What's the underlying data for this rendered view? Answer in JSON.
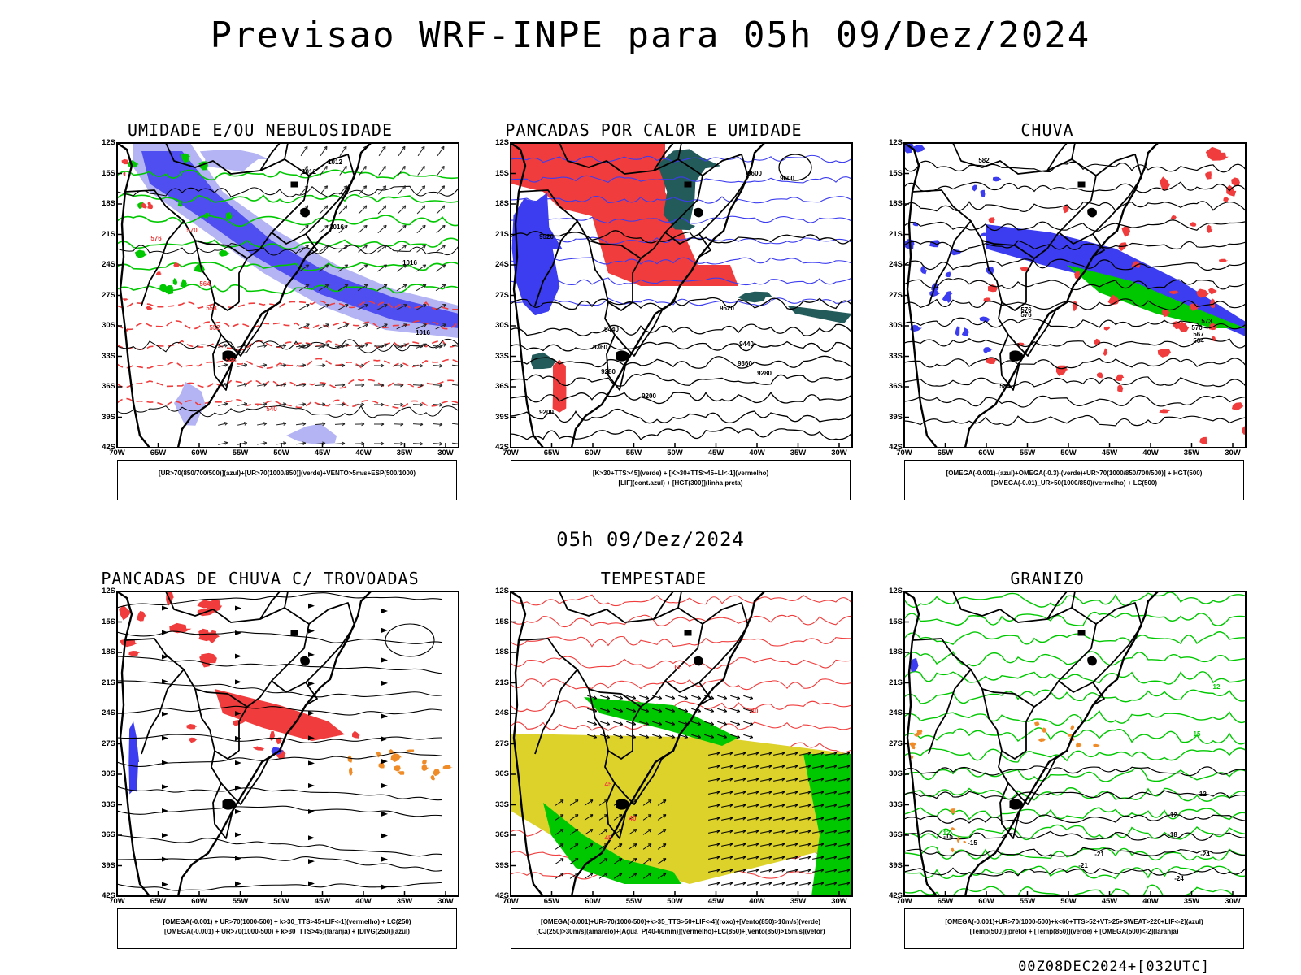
{
  "title": "Previsao WRF-INPE  para 05h 09/Dez/2024",
  "mid_time": "05h 09/Dez/2024",
  "run_stamp": "00Z08DEC2024+[032UTC]",
  "lat_ticks": [
    "12S",
    "15S",
    "18S",
    "21S",
    "24S",
    "27S",
    "30S",
    "33S",
    "36S",
    "39S",
    "42S"
  ],
  "lon_ticks": [
    "70W",
    "65W",
    "60W",
    "55W",
    "50W",
    "45W",
    "40W",
    "35W",
    "30W"
  ],
  "colors": {
    "azul": "#3c3cf0",
    "azul_claro": "#b4b4f4",
    "verde": "#00c800",
    "vermelho": "#f03c3c",
    "verde_escuro": "#235a5a",
    "amarelo": "#dcd22a",
    "laranja": "#f08c28",
    "preto": "#000000"
  },
  "panels": [
    {
      "id": "umidade",
      "title": "UMIDADE E/OU NEBULOSIDADE",
      "legend": [
        "[UR>70(850/700/500)](azul)+[UR>70(1000/850)](verde)+VENTO>5m/s+ESP(500/1000)"
      ],
      "contour_labels": [
        {
          "text": "1012",
          "c": "preto"
        },
        {
          "text": "1012",
          "c": "preto"
        },
        {
          "text": "1016",
          "c": "preto"
        },
        {
          "text": "576",
          "c": "vermelho"
        },
        {
          "text": "570",
          "c": "vermelho"
        },
        {
          "text": "564",
          "c": "vermelho"
        },
        {
          "text": "558",
          "c": "vermelho"
        },
        {
          "text": "552",
          "c": "vermelho"
        },
        {
          "text": "546",
          "c": "vermelho"
        },
        {
          "text": "540",
          "c": "vermelho"
        },
        {
          "text": "1016",
          "c": "preto"
        },
        {
          "text": "1016",
          "c": "preto"
        }
      ]
    },
    {
      "id": "pancadas_calor",
      "title": "PANCADAS POR CALOR E UMIDADE",
      "legend": [
        "[K>30+TTS>45](verde) + [K>30+TTS>45+LI<-1](vermelho)",
        "[LIF](cont.azul) + [HGT(300)](linha preta)"
      ],
      "contour_labels": [
        {
          "text": "9600",
          "c": "preto"
        },
        {
          "text": "9600",
          "c": "preto"
        },
        {
          "text": "9520",
          "c": "preto"
        },
        {
          "text": "9520",
          "c": "preto"
        },
        {
          "text": "9440",
          "c": "preto"
        },
        {
          "text": "9440",
          "c": "preto"
        },
        {
          "text": "9360",
          "c": "preto"
        },
        {
          "text": "9360",
          "c": "preto"
        },
        {
          "text": "9280",
          "c": "preto"
        },
        {
          "text": "9280",
          "c": "preto"
        },
        {
          "text": "9200",
          "c": "preto"
        },
        {
          "text": "9200",
          "c": "preto"
        }
      ]
    },
    {
      "id": "chuva",
      "title": "CHUVA",
      "legend": [
        "[OMEGA(-0.001)-(azul)+OMEGA(-0.3)-(verde)+UR>70(1000/850/700/500)] + HGT(500)",
        "[OMEGA(-0.01)_UR>50(1000/850)(vermelho) + LC(500)"
      ],
      "contour_labels": [
        {
          "text": "582",
          "c": "preto"
        },
        {
          "text": "576",
          "c": "preto"
        },
        {
          "text": "576",
          "c": "preto"
        },
        {
          "text": "573",
          "c": "preto"
        },
        {
          "text": "570",
          "c": "preto"
        },
        {
          "text": "567",
          "c": "preto"
        },
        {
          "text": "564",
          "c": "preto"
        },
        {
          "text": "584",
          "c": "preto"
        }
      ]
    },
    {
      "id": "pancadas_trovoadas",
      "title": "PANCADAS DE CHUVA C/ TROVOADAS",
      "legend": [
        "[OMEGA(-0.001) + UR>70(1000-500) + k>30_TTS>45+LIF<-1](vermelho) + LC(250)",
        "[OMEGA(-0.001) + UR>70(1000-500) + k>30_TTS>45](laranja) + [DIVG(250)](azul)"
      ],
      "contour_labels": []
    },
    {
      "id": "tempestade",
      "title": "TEMPESTADE",
      "legend": [
        "[OMEGA(-0.001)+UR>70(1000-500)+k>35_TTS>50+LIF<-4](roxo)+[Vento(850)>10m/s](verde)",
        "[CJ(250)>30m/s](amarelo)+[Agua_P(40-60mm)](vermelho)+LC(850)+[Vento(850)>15m/s](vetor)"
      ],
      "contour_labels": [
        {
          "text": "60",
          "c": "vermelho"
        },
        {
          "text": "45",
          "c": "vermelho"
        },
        {
          "text": "40",
          "c": "vermelho"
        },
        {
          "text": "45",
          "c": "vermelho"
        },
        {
          "text": "40",
          "c": "vermelho"
        }
      ]
    },
    {
      "id": "granizo",
      "title": "GRANIZO",
      "legend": [
        "[OMEGA(-0.001)+UR>70(1000-500)+k<60+TTS>52+VT>25+SWEAT>220+LIF<-2](azul)",
        "[Temp(500)](preto) + [Temp(850)](verde) + [OMEGA(500)<-2](laranja)"
      ],
      "contour_labels": [
        {
          "text": "12",
          "c": "verde"
        },
        {
          "text": "15",
          "c": "verde"
        },
        {
          "text": "12",
          "c": "verde"
        },
        {
          "text": "-12",
          "c": "preto"
        },
        {
          "text": "-15",
          "c": "preto"
        },
        {
          "text": "-12",
          "c": "preto"
        },
        {
          "text": "-15",
          "c": "preto"
        },
        {
          "text": "-18",
          "c": "preto"
        },
        {
          "text": "-21",
          "c": "preto"
        },
        {
          "text": "-21",
          "c": "preto"
        },
        {
          "text": "-24",
          "c": "preto"
        },
        {
          "text": "-24",
          "c": "preto"
        }
      ]
    }
  ]
}
